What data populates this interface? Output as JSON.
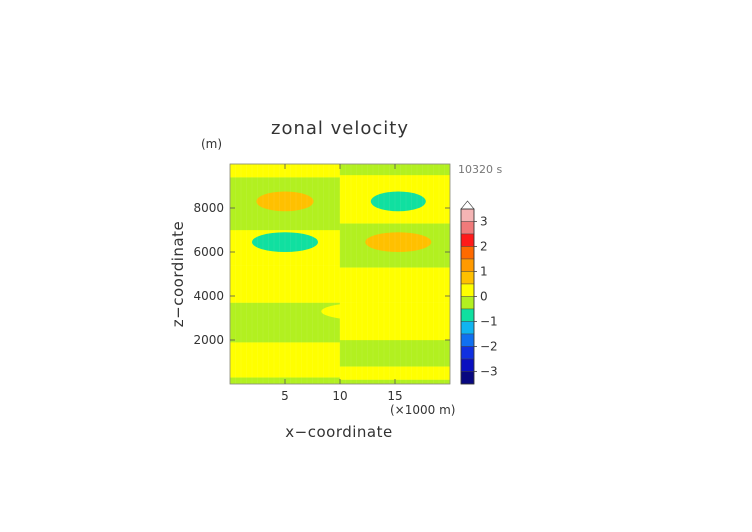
{
  "chart_data": {
    "type": "heatmap",
    "title": "zonal velocity",
    "xlabel": "x−coordinate",
    "ylabel": "z−coordinate",
    "x_unit": "(×1000 m)",
    "y_unit": "(m)",
    "time_label": "10320 s",
    "xlim": [
      0,
      20
    ],
    "ylim": [
      0,
      10000
    ],
    "x_ticks": [
      5,
      10,
      15
    ],
    "x_tick_labels": [
      "5",
      "10",
      "15"
    ],
    "y_ticks": [
      2000,
      4000,
      6000,
      8000
    ],
    "y_tick_labels": [
      "2000",
      "4000",
      "6000",
      "8000"
    ],
    "colorbar": {
      "tick_values": [
        3,
        2,
        1,
        0,
        -1,
        -2,
        -3
      ],
      "tick_labels": [
        "3",
        "2",
        "1",
        "0",
        "−1",
        "−2",
        "−3"
      ],
      "levels": [
        {
          "min": 3.0,
          "max": 3.5,
          "color": "#f4b4b4"
        },
        {
          "min": 2.5,
          "max": 3.0,
          "color": "#f07a7a"
        },
        {
          "min": 2.0,
          "max": 2.5,
          "color": "#ff1a1a"
        },
        {
          "min": 1.5,
          "max": 2.0,
          "color": "#ff6a00"
        },
        {
          "min": 1.0,
          "max": 1.5,
          "color": "#ff9a00"
        },
        {
          "min": 0.5,
          "max": 1.0,
          "color": "#ffc000"
        },
        {
          "min": 0.0,
          "max": 0.5,
          "color": "#ffff00"
        },
        {
          "min": -0.5,
          "max": 0.0,
          "color": "#b2f020"
        },
        {
          "min": -1.0,
          "max": -0.5,
          "color": "#10e0a0"
        },
        {
          "min": -1.5,
          "max": -1.0,
          "color": "#10b4f0"
        },
        {
          "min": -2.0,
          "max": -1.5,
          "color": "#1070f0"
        },
        {
          "min": -2.5,
          "max": -2.0,
          "color": "#1030e0"
        },
        {
          "min": -3.0,
          "max": -2.5,
          "color": "#0a10c0"
        },
        {
          "min": -3.5,
          "max": -3.0,
          "color": "#080880"
        }
      ]
    },
    "bands": [
      {
        "left_z": [
          0,
          300
        ],
        "right_z": [
          0,
          200
        ],
        "level": "neg"
      },
      {
        "left_z": [
          300,
          1900
        ],
        "right_z": [
          200,
          800
        ],
        "level": "pos"
      },
      {
        "left_z": [
          1900,
          3700
        ],
        "right_z": [
          800,
          2000
        ],
        "level": "neg"
      },
      {
        "left_z": [
          3700,
          5400
        ],
        "right_z": [
          2000,
          3700
        ],
        "level": "pos"
      },
      {
        "left_z": [
          5400,
          7000
        ],
        "right_z": [
          3700,
          5300
        ],
        "level": "pos"
      },
      {
        "left_z": [
          7000,
          9400
        ],
        "right_z": [
          5300,
          7300
        ],
        "level": "neg"
      },
      {
        "left_z": [
          9400,
          10000
        ],
        "right_z": [
          7300,
          9500
        ],
        "level": "pos"
      },
      {
        "left_z": [
          10000,
          10000
        ],
        "right_z": [
          9500,
          10000
        ],
        "level": "neg"
      }
    ],
    "blobs": [
      {
        "x": 5,
        "z": 8300,
        "rx": 2.6,
        "rz": 450,
        "value": 0.8
      },
      {
        "x": 15.3,
        "z": 8300,
        "rx": 2.5,
        "rz": 450,
        "value": -0.8
      },
      {
        "x": 5,
        "z": 6450,
        "rx": 3.0,
        "rz": 450,
        "value": -0.8
      },
      {
        "x": 15.3,
        "z": 6450,
        "rx": 3.0,
        "rz": 450,
        "value": 0.8
      }
    ],
    "colors": {
      "pos": "#ffff00",
      "neg": "#b2f020"
    }
  }
}
